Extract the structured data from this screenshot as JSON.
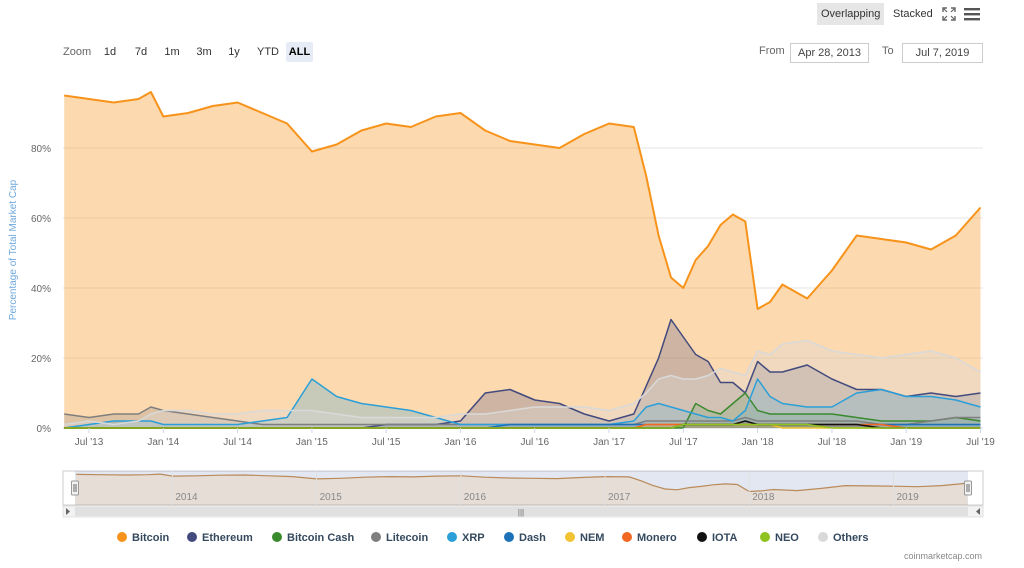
{
  "toolbar": {
    "overlapping_label": "Overlapping",
    "stacked_label": "Stacked",
    "zoom_label": "Zoom",
    "zoom_buttons": [
      "1d",
      "7d",
      "1m",
      "3m",
      "1y",
      "YTD",
      "ALL"
    ],
    "zoom_active": "ALL",
    "from_label": "From",
    "to_label": "To",
    "from_value": "Apr 28, 2013",
    "to_value": "Jul 7, 2019",
    "fullscreen_icon": "fullscreen-icon",
    "menu_icon": "hamburger-menu-icon"
  },
  "credit": "coinmarketcap.com",
  "colors": {
    "bitcoin": "#f7931a",
    "ethereum": "#434a7e",
    "bitcoin_cash": "#3a8a2e",
    "litecoin": "#7f7f7f",
    "xrp": "#2a9fd8",
    "dash": "#1d71b8",
    "nem": "#f1c232",
    "monero": "#f26822",
    "iota": "#111111",
    "neo": "#8fc31f",
    "others": "#d9d9d9",
    "axis_title": "#6fa8dc"
  },
  "chart_data": {
    "type": "area",
    "ylabel": "Percentage of Total Market Cap",
    "y_ticks": [
      "0%",
      "20%",
      "40%",
      "60%",
      "80%"
    ],
    "ylim": [
      0,
      100
    ],
    "x_ticks": [
      "Jul '13",
      "Jan '14",
      "Jul '14",
      "Jan '15",
      "Jul '15",
      "Jan '16",
      "Jul '16",
      "Jan '17",
      "Jul '17",
      "Jan '18",
      "Jul '18",
      "Jan '19",
      "Jul '19"
    ],
    "navigator_ticks": [
      "2014",
      "2015",
      "2016",
      "2017",
      "2018",
      "2019"
    ],
    "grid": true,
    "x": [
      "2013-05",
      "2013-07",
      "2013-09",
      "2013-11",
      "2013-12",
      "2014-01",
      "2014-03",
      "2014-05",
      "2014-07",
      "2014-09",
      "2014-11",
      "2015-01",
      "2015-03",
      "2015-05",
      "2015-07",
      "2015-09",
      "2015-11",
      "2016-01",
      "2016-03",
      "2016-05",
      "2016-07",
      "2016-09",
      "2016-11",
      "2017-01",
      "2017-03",
      "2017-04",
      "2017-05",
      "2017-06",
      "2017-07",
      "2017-08",
      "2017-09",
      "2017-10",
      "2017-11",
      "2017-12",
      "2018-01",
      "2018-02",
      "2018-03",
      "2018-05",
      "2018-07",
      "2018-09",
      "2018-11",
      "2019-01",
      "2019-03",
      "2019-05",
      "2019-07"
    ],
    "series": [
      {
        "name": "Bitcoin",
        "color_key": "bitcoin",
        "values": [
          95,
          94,
          93,
          94,
          96,
          89,
          90,
          92,
          93,
          90,
          87,
          79,
          81,
          85,
          87,
          86,
          89,
          90,
          85,
          82,
          81,
          80,
          84,
          87,
          86,
          72,
          55,
          43,
          40,
          48,
          52,
          58,
          61,
          59,
          34,
          36,
          41,
          37,
          45,
          55,
          54,
          53,
          51,
          55,
          63
        ]
      },
      {
        "name": "Ethereum",
        "color_key": "ethereum",
        "values": [
          0,
          0,
          0,
          0,
          0,
          0,
          0,
          0,
          0,
          0,
          0,
          0,
          0,
          0,
          1,
          1,
          1,
          2,
          10,
          11,
          8,
          7,
          4,
          2,
          4,
          12,
          20,
          31,
          26,
          21,
          19,
          13,
          13,
          10,
          19,
          16,
          16,
          18,
          14,
          11,
          11,
          9,
          10,
          9,
          10
        ]
      },
      {
        "name": "Bitcoin Cash",
        "color_key": "bitcoin_cash",
        "values": [
          0,
          0,
          0,
          0,
          0,
          0,
          0,
          0,
          0,
          0,
          0,
          0,
          0,
          0,
          0,
          0,
          0,
          0,
          0,
          0,
          0,
          0,
          0,
          0,
          0,
          0,
          0,
          0,
          0,
          7,
          5,
          4,
          7,
          10,
          5,
          4,
          4,
          4,
          4,
          3,
          2,
          2,
          2,
          3,
          2
        ]
      },
      {
        "name": "Litecoin",
        "color_key": "litecoin",
        "values": [
          4,
          3,
          4,
          4,
          6,
          5,
          4,
          3,
          2,
          1,
          1,
          1,
          1,
          1,
          1,
          1,
          1,
          1,
          1,
          1,
          1,
          1,
          1,
          1,
          1,
          2,
          2,
          2,
          2,
          2,
          2,
          2,
          2,
          3,
          2,
          2,
          2,
          2,
          2,
          2,
          1,
          1,
          2,
          3,
          3
        ]
      },
      {
        "name": "XRP",
        "color_key": "xrp",
        "values": [
          0,
          1,
          2,
          2,
          2,
          1,
          1,
          1,
          1,
          2,
          3,
          14,
          9,
          7,
          6,
          5,
          3,
          1,
          1,
          1,
          1,
          1,
          1,
          1,
          2,
          6,
          7,
          6,
          5,
          4,
          3,
          3,
          2,
          5,
          14,
          9,
          7,
          6,
          6,
          10,
          11,
          9,
          9,
          8,
          6
        ]
      },
      {
        "name": "Dash",
        "color_key": "dash",
        "values": [
          0,
          0,
          0,
          0,
          0,
          0,
          0,
          0,
          0,
          0,
          0,
          0,
          0,
          0,
          0,
          0,
          0,
          0,
          0,
          1,
          1,
          1,
          1,
          1,
          1,
          1,
          1,
          1,
          1,
          1,
          1,
          1,
          1,
          1,
          1,
          1,
          1,
          1,
          1,
          1,
          1,
          1,
          1,
          1,
          1
        ]
      },
      {
        "name": "NEM",
        "color_key": "nem",
        "values": [
          0,
          0,
          0,
          0,
          0,
          0,
          0,
          0,
          0,
          0,
          0,
          0,
          0,
          0,
          0,
          0,
          0,
          0,
          0,
          0,
          0,
          0,
          0,
          0,
          0,
          1,
          1,
          1,
          1,
          1,
          1,
          1,
          1,
          1,
          1,
          1,
          0,
          0,
          0,
          0,
          0,
          0,
          0,
          0,
          0
        ]
      },
      {
        "name": "Monero",
        "color_key": "monero",
        "values": [
          0,
          0,
          0,
          0,
          0,
          0,
          0,
          0,
          0,
          0,
          0,
          0,
          0,
          0,
          0,
          0,
          0,
          0,
          0,
          0,
          0,
          0,
          0,
          0,
          0,
          1,
          1,
          1,
          1,
          1,
          1,
          1,
          1,
          1,
          1,
          1,
          1,
          1,
          1,
          1,
          1,
          0,
          0,
          0,
          0
        ]
      },
      {
        "name": "IOTA",
        "color_key": "iota",
        "values": [
          0,
          0,
          0,
          0,
          0,
          0,
          0,
          0,
          0,
          0,
          0,
          0,
          0,
          0,
          0,
          0,
          0,
          0,
          0,
          0,
          0,
          0,
          0,
          0,
          0,
          0,
          0,
          0,
          1,
          1,
          1,
          1,
          1,
          2,
          1,
          1,
          1,
          1,
          1,
          1,
          0,
          0,
          0,
          0,
          0
        ]
      },
      {
        "name": "NEO",
        "color_key": "neo",
        "values": [
          0,
          0,
          0,
          0,
          0,
          0,
          0,
          0,
          0,
          0,
          0,
          0,
          0,
          0,
          0,
          0,
          0,
          0,
          0,
          0,
          0,
          0,
          0,
          0,
          0,
          0,
          0,
          0,
          1,
          1,
          1,
          1,
          1,
          1,
          1,
          1,
          1,
          1,
          0,
          0,
          0,
          0,
          0,
          0,
          0
        ]
      },
      {
        "name": "Others",
        "color_key": "others",
        "values": [
          1,
          2,
          1,
          2,
          4,
          5,
          5,
          4,
          4,
          5,
          5,
          5,
          4,
          3,
          3,
          3,
          3,
          4,
          4,
          5,
          6,
          6,
          6,
          5,
          7,
          10,
          14,
          15,
          14,
          14,
          15,
          17,
          16,
          15,
          22,
          21,
          24,
          25,
          22,
          21,
          20,
          21,
          22,
          20,
          16
        ]
      }
    ]
  }
}
